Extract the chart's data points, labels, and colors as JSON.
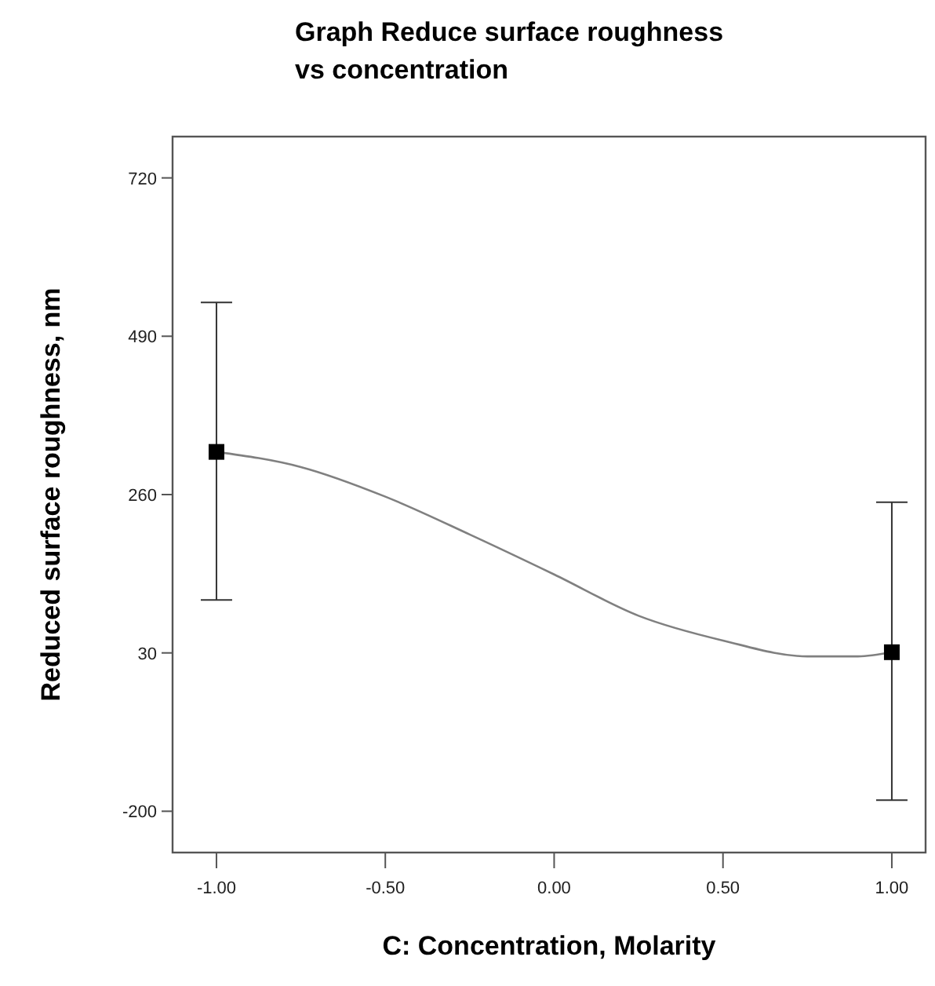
{
  "chart_data": {
    "type": "scatter",
    "title": "Graph Reduce surface roughness vs concentration",
    "xlabel": "C: Concentration, Molarity",
    "ylabel": "Reduced surface roughness, nm",
    "xlim": [
      -1.13,
      1.1
    ],
    "ylim": [
      -260,
      780
    ],
    "xticks": [
      {
        "value": -1,
        "label": "-1.00"
      },
      {
        "value": -0.5,
        "label": "-0.50"
      },
      {
        "value": 0,
        "label": "0.00"
      },
      {
        "value": 0.5,
        "label": "0.50"
      },
      {
        "value": 1,
        "label": "1.00"
      }
    ],
    "yticks": [
      -200,
      30,
      260,
      490,
      720
    ],
    "grid": false,
    "series": [
      {
        "type": "line",
        "color": "#808080",
        "marker": "none",
        "line_style": "solid",
        "x": [
          -1,
          -0.75,
          -0.5,
          -0.25,
          0,
          0.25,
          0.5,
          0.75,
          0.9,
          1
        ],
        "values": [
          322,
          300,
          257,
          202,
          144,
          84,
          48,
          25,
          25,
          31
        ]
      },
      {
        "color": "#000000",
        "marker": "square",
        "x": [
          -1,
          1
        ],
        "values": [
          322,
          31
        ],
        "errors": [
          [
            107,
            539
          ],
          [
            -184,
            249
          ]
        ]
      }
    ]
  }
}
